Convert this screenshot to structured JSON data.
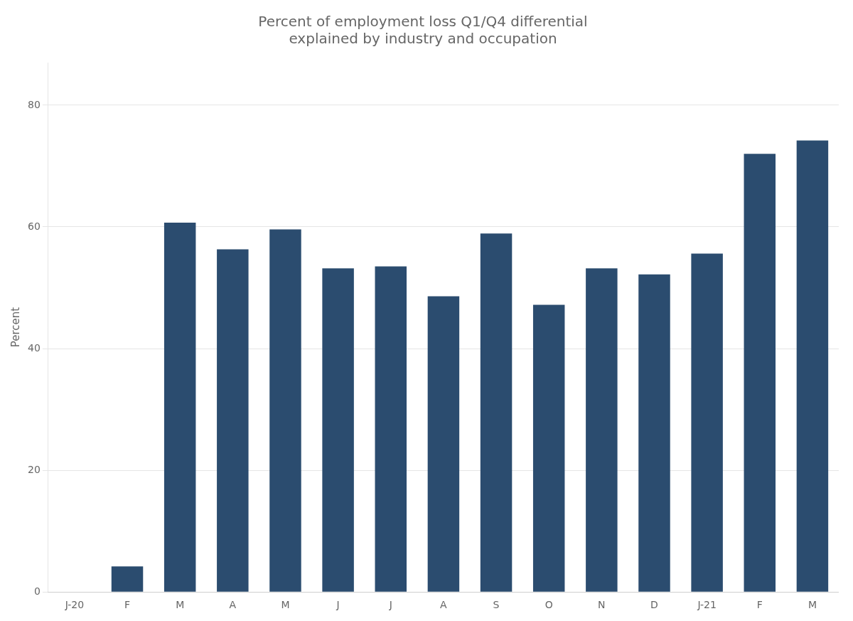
{
  "chart_data": {
    "type": "bar",
    "title": "Percent of employment loss Q1/Q4 differential\nexplained by industry and occupation",
    "ylabel": "Percent",
    "categories": [
      "J-20",
      "F",
      "M",
      "A",
      "M",
      "J",
      "J",
      "A",
      "S",
      "O",
      "N",
      "D",
      "J-21",
      "F",
      "M"
    ],
    "values": [
      0,
      4.2,
      60.7,
      56.3,
      59.6,
      53.2,
      53.5,
      48.6,
      58.9,
      47.2,
      53.2,
      52.2,
      55.6,
      72.0,
      74.2
    ],
    "color": "#2b4c6f",
    "ylim": [
      0,
      87
    ],
    "yticks": [
      0,
      20,
      40,
      60,
      80
    ],
    "grid": true
  }
}
